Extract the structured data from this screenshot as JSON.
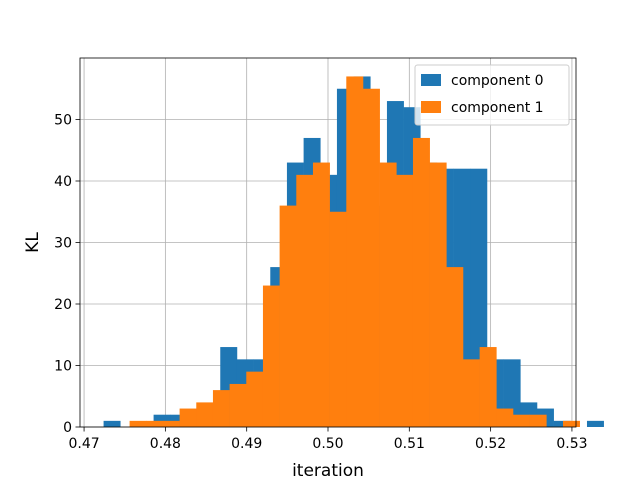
{
  "chart_data": {
    "type": "bar",
    "title": "",
    "xlabel": "iteration",
    "ylabel": "KL",
    "xlim": [
      0.4695,
      0.5305
    ],
    "ylim": [
      0,
      60
    ],
    "xticks": [
      0.47,
      0.48,
      0.49,
      0.5,
      0.51,
      0.52,
      0.53
    ],
    "xtick_labels": [
      "0.47",
      "0.48",
      "0.49",
      "0.50",
      "0.51",
      "0.52",
      "0.53"
    ],
    "yticks": [
      0,
      10,
      20,
      30,
      40,
      50
    ],
    "ytick_labels": [
      "0",
      "10",
      "20",
      "30",
      "40",
      "50"
    ],
    "grid": true,
    "legend_position": "top-right",
    "series": [
      {
        "name": "component 0",
        "color": "#1f77b4",
        "bin_start": 0.4724,
        "bin_width": 0.00205,
        "counts": [
          1,
          0,
          0,
          2,
          2,
          0,
          3,
          13,
          11,
          11,
          26,
          43,
          47,
          41,
          55,
          57,
          36,
          53,
          52,
          43,
          42,
          42,
          42,
          11,
          11,
          4,
          3,
          1,
          0,
          1
        ]
      },
      {
        "name": "component 1",
        "color": "#ff7f0e",
        "bin_start": 0.4756,
        "bin_width": 0.00205,
        "counts": [
          1,
          1,
          1,
          3,
          4,
          6,
          7,
          9,
          23,
          36,
          41,
          43,
          35,
          57,
          55,
          43,
          41,
          47,
          43,
          26,
          11,
          13,
          3,
          2,
          2,
          0,
          1
        ]
      }
    ]
  }
}
